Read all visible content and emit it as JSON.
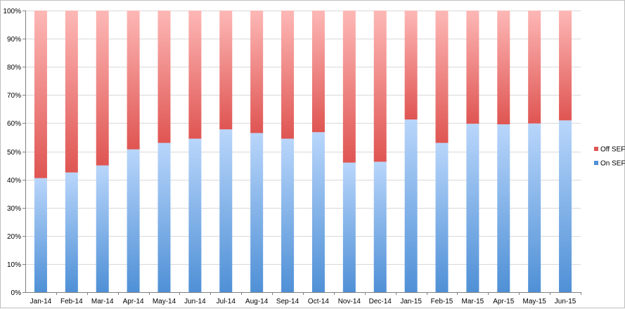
{
  "chart_data": {
    "type": "bar",
    "stacked": true,
    "percent": true,
    "title": "",
    "xlabel": "",
    "ylabel": "",
    "ylim": [
      0,
      100
    ],
    "y_ticks": [
      "0%",
      "10%",
      "20%",
      "30%",
      "40%",
      "50%",
      "60%",
      "70%",
      "80%",
      "90%",
      "100%"
    ],
    "grid": true,
    "legend_position": "right",
    "categories": [
      "Jan-14",
      "Feb-14",
      "Mar-14",
      "Apr-14",
      "May-14",
      "Jun-14",
      "Jul-14",
      "Aug-14",
      "Sep-14",
      "Oct-14",
      "Nov-14",
      "Dec-14",
      "Jan-15",
      "Feb-15",
      "Mar-15",
      "Apr-15",
      "May-15",
      "Jun-15"
    ],
    "series": [
      {
        "name": "On SEF",
        "color_top": "#b9d6fb",
        "color_bottom": "#4f90d6",
        "values": [
          40.5,
          42.5,
          45.0,
          50.7,
          53.0,
          54.5,
          57.8,
          56.5,
          54.5,
          56.8,
          46.0,
          46.3,
          61.3,
          53.0,
          59.8,
          59.6,
          59.9,
          61.0
        ]
      },
      {
        "name": "Off SEF",
        "color_top": "#fdb8b6",
        "color_bottom": "#df5552",
        "values": [
          59.5,
          57.5,
          55.0,
          49.3,
          47.0,
          45.5,
          42.2,
          43.5,
          45.5,
          43.2,
          54.0,
          53.7,
          38.7,
          47.0,
          40.2,
          40.4,
          40.1,
          39.0
        ]
      }
    ]
  }
}
